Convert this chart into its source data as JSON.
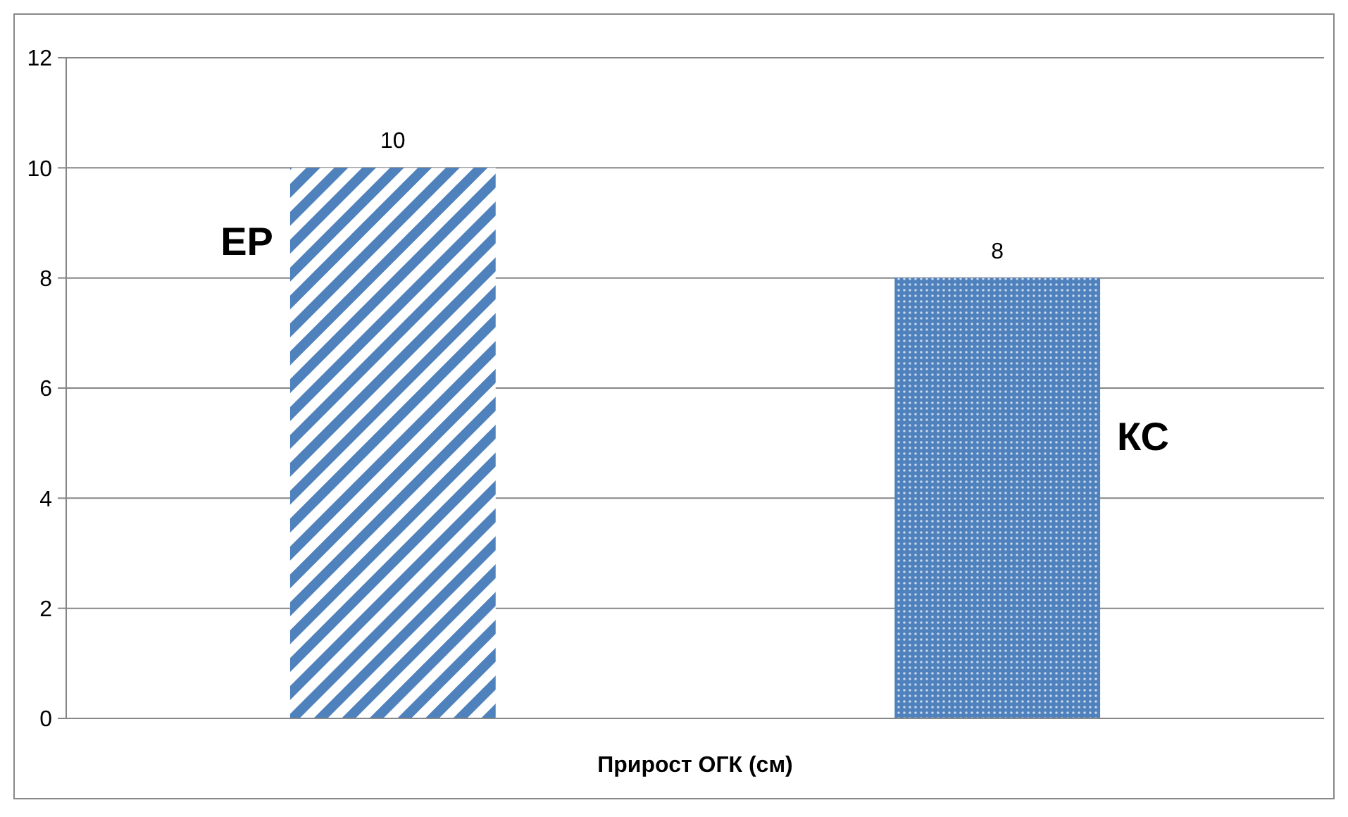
{
  "chart_data": {
    "type": "bar",
    "categories": [
      "Прирост ОГК (см)"
    ],
    "series": [
      {
        "name": "ЕР",
        "color": "#4f81bd",
        "values": [
          10
        ]
      },
      {
        "name": "КС",
        "color": "#4f81bd",
        "values": [
          8
        ]
      }
    ],
    "ylim": [
      0,
      12
    ],
    "yticks": [
      0,
      2,
      4,
      6,
      8,
      10,
      12
    ],
    "grid": "y",
    "data_labels": true
  }
}
